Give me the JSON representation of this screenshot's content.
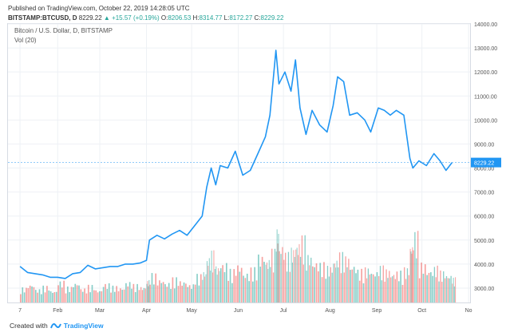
{
  "header": {
    "published": "Published on TradingView.com, October 22, 2019 14:28:05 UTC",
    "symbol": "BITSTAMP:BTCUSD, D",
    "price": "8229.22",
    "change_arrow": "▲",
    "change": "+15.57 (+0.19%)",
    "o_label": "O:",
    "o_value": "8206.53",
    "h_label": "H:",
    "h_value": "8314.77",
    "l_label": "L:",
    "l_value": "8172.27",
    "c_label": "C:",
    "c_value": "8229.22"
  },
  "legend": {
    "series_title": "Bitcoin / U.S. Dollar, D, BITSTAMP",
    "volume_title": "Vol (20)"
  },
  "footer": {
    "created_with": "Created with",
    "brand": "TradingView"
  },
  "colors": {
    "line": "#2196f3",
    "vol_up": "#26a69a",
    "vol_down": "#ef5350",
    "grid": "#eef1f5",
    "price_tag": "#2196f3"
  },
  "chart_data": {
    "type": "line",
    "title": "Bitcoin / U.S. Dollar, D, BITSTAMP",
    "y_axis_labels": [
      "3000.00",
      "4000.00",
      "5000.00",
      "6000.00",
      "7000.00",
      "8000.00",
      "9000.00",
      "10000.00",
      "11000.00",
      "12000.00",
      "13000.00",
      "14000.00"
    ],
    "ylim": [
      2400,
      14000
    ],
    "x_axis_labels": [
      "7",
      "Feb",
      "Mar",
      "Apr",
      "May",
      "Jun",
      "Jul",
      "Aug",
      "Sep",
      "Oct",
      "No"
    ],
    "last_price_label": "8229.22",
    "grid": true,
    "x": [
      "2019-01-07",
      "2019-01-12",
      "2019-01-17",
      "2019-01-22",
      "2019-01-27",
      "2019-02-01",
      "2019-02-06",
      "2019-02-11",
      "2019-02-16",
      "2019-02-21",
      "2019-02-26",
      "2019-03-03",
      "2019-03-08",
      "2019-03-13",
      "2019-03-18",
      "2019-03-23",
      "2019-03-28",
      "2019-04-01",
      "2019-04-03",
      "2019-04-08",
      "2019-04-13",
      "2019-04-18",
      "2019-04-23",
      "2019-04-28",
      "2019-05-03",
      "2019-05-08",
      "2019-05-11",
      "2019-05-14",
      "2019-05-17",
      "2019-05-20",
      "2019-05-25",
      "2019-05-30",
      "2019-06-04",
      "2019-06-09",
      "2019-06-14",
      "2019-06-19",
      "2019-06-22",
      "2019-06-26",
      "2019-06-28",
      "2019-07-02",
      "2019-07-06",
      "2019-07-09",
      "2019-07-12",
      "2019-07-16",
      "2019-07-20",
      "2019-07-25",
      "2019-07-30",
      "2019-08-03",
      "2019-08-06",
      "2019-08-10",
      "2019-08-14",
      "2019-08-19",
      "2019-08-24",
      "2019-08-28",
      "2019-09-02",
      "2019-09-06",
      "2019-09-10",
      "2019-09-14",
      "2019-09-19",
      "2019-09-23",
      "2019-09-25",
      "2019-09-29",
      "2019-10-04",
      "2019-10-09",
      "2019-10-13",
      "2019-10-17",
      "2019-10-21"
    ],
    "values": [
      3900,
      3650,
      3600,
      3550,
      3450,
      3450,
      3400,
      3600,
      3650,
      3950,
      3800,
      3850,
      3900,
      3900,
      4000,
      4000,
      4050,
      4150,
      5000,
      5200,
      5050,
      5250,
      5400,
      5200,
      5600,
      6000,
      7200,
      8000,
      7300,
      8100,
      8000,
      8700,
      7700,
      7900,
      8600,
      9300,
      10200,
      12900,
      11500,
      12000,
      11200,
      12500,
      10500,
      9400,
      10400,
      9800,
      9500,
      10600,
      11800,
      11600,
      10200,
      10300,
      10000,
      9500,
      10500,
      10400,
      10200,
      10400,
      10200,
      8400,
      8000,
      8300,
      8100,
      8600,
      8300,
      7900,
      8229.22
    ],
    "volume": {
      "series_name": "Vol (20)",
      "note_values_in_k_units_relative": true,
      "values": [
        18,
        22,
        16,
        20,
        14,
        26,
        19,
        24,
        17,
        21,
        15,
        23,
        20,
        18,
        25,
        22,
        19,
        27,
        35,
        28,
        24,
        30,
        26,
        22,
        34,
        38,
        55,
        62,
        44,
        48,
        40,
        46,
        36,
        42,
        58,
        52,
        64,
        90,
        70,
        60,
        66,
        72,
        80,
        58,
        50,
        48,
        44,
        52,
        60,
        56,
        46,
        40,
        42,
        38,
        44,
        40,
        36,
        38,
        42,
        70,
        85,
        48,
        40,
        44,
        38,
        34,
        30
      ],
      "up_down": [
        "u",
        "d",
        "u",
        "d",
        "u",
        "d",
        "u",
        "u",
        "d",
        "u",
        "d",
        "u",
        "u",
        "d",
        "u",
        "u",
        "d",
        "u",
        "u",
        "d",
        "u",
        "u",
        "d",
        "u",
        "u",
        "u",
        "u",
        "d",
        "u",
        "u",
        "u",
        "d",
        "u",
        "u",
        "u",
        "u",
        "d",
        "u",
        "d",
        "u",
        "u",
        "d",
        "d",
        "u",
        "d",
        "d",
        "u",
        "u",
        "d",
        "d",
        "u",
        "d",
        "d",
        "u",
        "u",
        "d",
        "d",
        "u",
        "d",
        "d",
        "u",
        "d",
        "u",
        "d",
        "d",
        "u",
        "u"
      ]
    }
  }
}
